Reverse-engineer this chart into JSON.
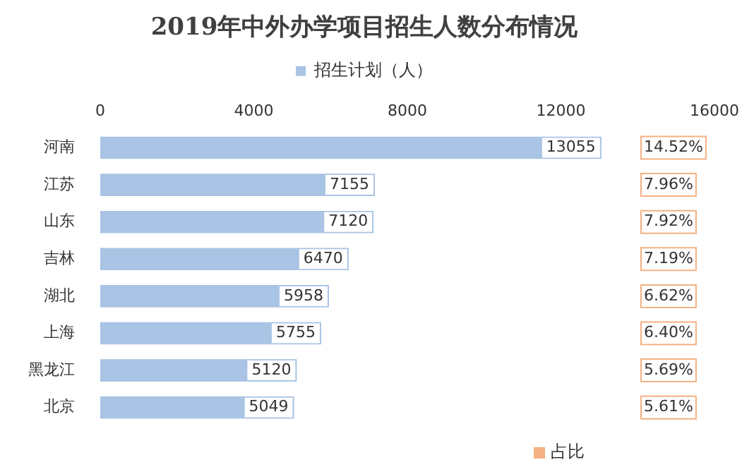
{
  "chart_data": {
    "type": "bar",
    "orientation": "horizontal",
    "title": "2019年中外办学项目招生人数分布情况",
    "categories": [
      "河南",
      "江苏",
      "山东",
      "吉林",
      "湖北",
      "上海",
      "黑龙江",
      "北京"
    ],
    "series": [
      {
        "name": "招生计划（人）",
        "color": "#a9c4e4",
        "values": [
          13055,
          7155,
          7120,
          6470,
          5958,
          5755,
          5120,
          5049
        ]
      }
    ],
    "annotations": [
      "14.52%",
      "7.96%",
      "7.92%",
      "7.19%",
      "6.62%",
      "6.40%",
      "5.69%",
      "5.61%",
      "占比"
    ],
    "xlim": [
      0,
      16000
    ],
    "xticks": [
      0,
      4000,
      8000,
      12000,
      16000
    ],
    "grid": false,
    "legend": "top",
    "data_labels": true
  }
}
